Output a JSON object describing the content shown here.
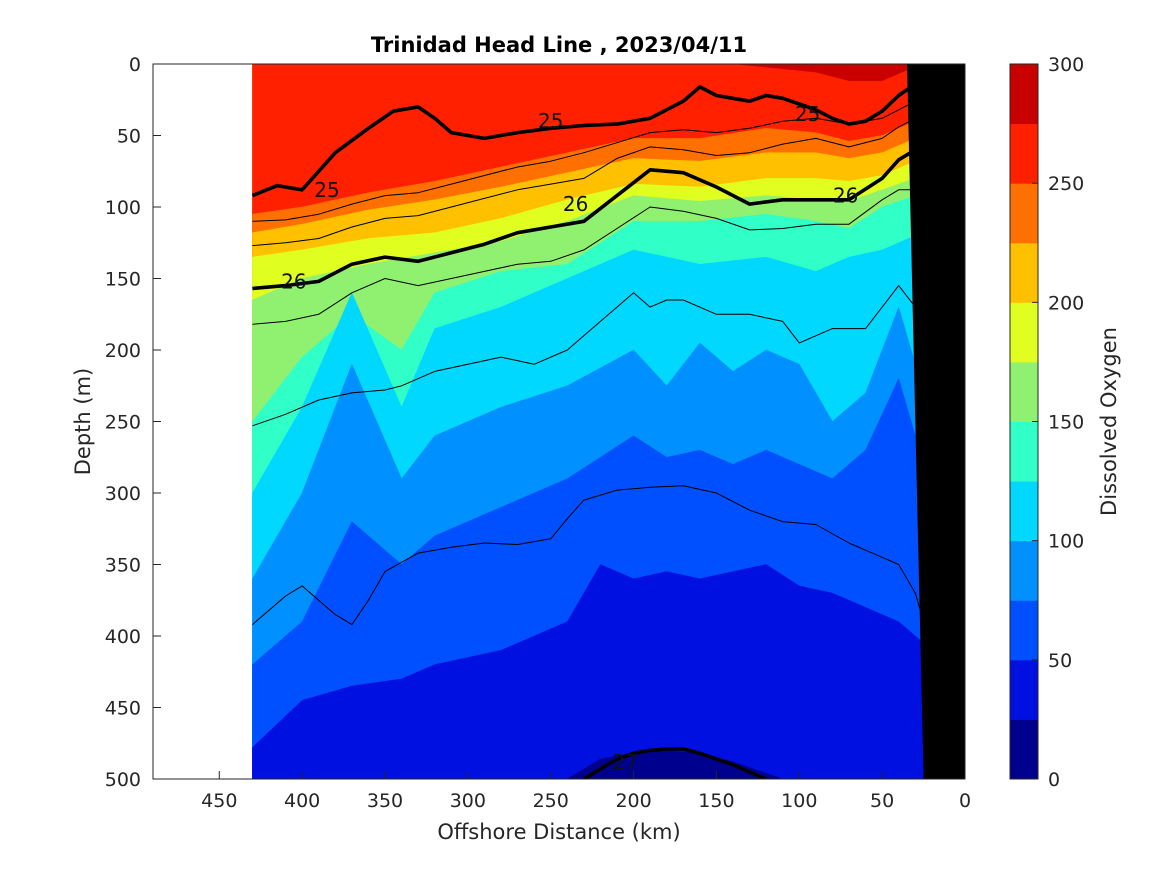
{
  "chart_data": {
    "type": "contourf",
    "title": "Trinidad Head Line , 2023/04/11",
    "xlabel": "Offshore Distance (km)",
    "ylabel": "Depth (m)",
    "colorbar_label": "Dissolved Oxygen",
    "xlim": [
      490,
      0
    ],
    "ylim": [
      0,
      500
    ],
    "x_reversed": true,
    "y_reversed": true,
    "x_ticks": [
      450,
      400,
      350,
      300,
      250,
      200,
      150,
      100,
      50,
      0
    ],
    "y_ticks": [
      0,
      50,
      100,
      150,
      200,
      250,
      300,
      350,
      400,
      450,
      500
    ],
    "data_x_range": [
      430,
      0
    ],
    "colorbar": {
      "range": [
        0,
        300
      ],
      "ticks": [
        0,
        50,
        100,
        150,
        200,
        250,
        300
      ],
      "levels": [
        0,
        25,
        50,
        75,
        100,
        125,
        150,
        175,
        200,
        225,
        250,
        275,
        300
      ],
      "colors": [
        "#00008f",
        "#0010e0",
        "#0050ff",
        "#0090ff",
        "#00d8ff",
        "#30ffc8",
        "#90f070",
        "#e0ff20",
        "#ffc000",
        "#ff7000",
        "#ff2000",
        "#c80000"
      ]
    },
    "oxygen_boundaries": [
      {
        "level": 275,
        "x": [
          430,
          300,
          200,
          150,
          90,
          70,
          50,
          30,
          10
        ],
        "depth": [
          -1,
          -1,
          -1,
          -1,
          6,
          12,
          12,
          2,
          0
        ]
      },
      {
        "level": 250,
        "x": [
          430,
          400,
          360,
          320,
          280,
          240,
          200,
          160,
          120,
          90,
          70,
          50,
          30,
          10
        ],
        "depth": [
          105,
          100,
          90,
          82,
          72,
          62,
          52,
          52,
          45,
          48,
          54,
          50,
          40,
          48
        ]
      },
      {
        "level": 225,
        "x": [
          430,
          400,
          360,
          320,
          280,
          240,
          200,
          160,
          120,
          90,
          70,
          50,
          30,
          10
        ],
        "depth": [
          118,
          112,
          102,
          95,
          86,
          76,
          66,
          68,
          62,
          62,
          66,
          62,
          52,
          58
        ]
      },
      {
        "level": 200,
        "x": [
          430,
          400,
          360,
          320,
          280,
          240,
          200,
          160,
          120,
          90,
          70,
          50,
          30,
          10
        ],
        "depth": [
          135,
          130,
          122,
          118,
          108,
          95,
          84,
          86,
          80,
          80,
          82,
          78,
          68,
          72
        ]
      },
      {
        "level": 175,
        "x": [
          430,
          400,
          360,
          320,
          280,
          240,
          200,
          160,
          120,
          90,
          70,
          50,
          30,
          10
        ],
        "depth": [
          165,
          150,
          140,
          132,
          124,
          110,
          92,
          96,
          92,
          95,
          96,
          88,
          80,
          90
        ]
      },
      {
        "level": 150,
        "x": [
          430,
          400,
          370,
          340,
          320,
          280,
          240,
          200,
          160,
          120,
          90,
          70,
          50,
          30,
          10
        ],
        "depth": [
          250,
          205,
          175,
          200,
          160,
          145,
          140,
          110,
          110,
          105,
          110,
          115,
          100,
          92,
          110
        ]
      },
      {
        "level": 125,
        "x": [
          430,
          400,
          370,
          340,
          320,
          280,
          240,
          200,
          160,
          120,
          90,
          70,
          50,
          30,
          10
        ],
        "depth": [
          300,
          240,
          160,
          240,
          185,
          170,
          150,
          130,
          140,
          135,
          145,
          135,
          130,
          120,
          160
        ]
      },
      {
        "level": 100,
        "x": [
          430,
          400,
          370,
          340,
          320,
          280,
          240,
          200,
          180,
          160,
          140,
          120,
          100,
          80,
          60,
          40,
          20
        ],
        "depth": [
          360,
          300,
          210,
          290,
          260,
          240,
          225,
          200,
          225,
          195,
          215,
          200,
          210,
          250,
          230,
          170,
          250
        ]
      },
      {
        "level": 75,
        "x": [
          430,
          400,
          370,
          340,
          320,
          280,
          240,
          200,
          180,
          160,
          140,
          120,
          100,
          80,
          60,
          40,
          20
        ],
        "depth": [
          420,
          390,
          320,
          350,
          330,
          310,
          290,
          260,
          275,
          270,
          280,
          270,
          280,
          290,
          270,
          220,
          300
        ]
      },
      {
        "level": 50,
        "x": [
          430,
          400,
          370,
          340,
          320,
          280,
          240,
          220,
          200,
          180,
          160,
          140,
          120,
          100,
          80,
          60,
          40,
          20
        ],
        "depth": [
          478,
          445,
          435,
          430,
          420,
          410,
          390,
          350,
          360,
          355,
          360,
          355,
          350,
          365,
          370,
          380,
          390,
          410
        ]
      },
      {
        "level": 25,
        "x": [
          240,
          220,
          200,
          180,
          160,
          140,
          120,
          110
        ],
        "depth": [
          500,
          486,
          482,
          480,
          482,
          488,
          496,
          500
        ]
      }
    ],
    "density_contours": [
      {
        "label": "25",
        "bold": true,
        "x": [
          430,
          415,
          400,
          390,
          380,
          360,
          345,
          330,
          320,
          310,
          290,
          270,
          250,
          230,
          210,
          190,
          170,
          160,
          150,
          130,
          120,
          110,
          100,
          90,
          80,
          70,
          60,
          50,
          40,
          30,
          20,
          10
        ],
        "depth": [
          92,
          85,
          88,
          75,
          62,
          45,
          33,
          30,
          38,
          48,
          52,
          48,
          45,
          43,
          42,
          38,
          26,
          16,
          22,
          26,
          22,
          24,
          28,
          32,
          38,
          42,
          40,
          33,
          22,
          14,
          16,
          20
        ]
      },
      {
        "label": "26",
        "bold": true,
        "x": [
          430,
          410,
          390,
          370,
          350,
          330,
          310,
          290,
          270,
          250,
          230,
          210,
          190,
          170,
          150,
          130,
          110,
          90,
          70,
          50,
          40,
          30,
          20,
          10
        ],
        "depth": [
          157,
          155,
          152,
          140,
          135,
          138,
          132,
          126,
          118,
          114,
          110,
          92,
          74,
          76,
          86,
          98,
          95,
          95,
          95,
          80,
          67,
          60,
          60,
          80
        ]
      },
      {
        "label": "",
        "bold": false,
        "x": [
          430,
          410,
          390,
          370,
          350,
          330,
          310,
          290,
          270,
          250,
          230,
          210,
          190,
          170,
          150,
          130,
          110,
          90,
          70,
          50,
          40,
          30,
          20,
          10
        ],
        "depth": [
          110,
          109,
          105,
          98,
          92,
          90,
          84,
          78,
          72,
          68,
          62,
          55,
          48,
          46,
          48,
          45,
          40,
          38,
          42,
          38,
          32,
          26,
          20,
          8
        ]
      },
      {
        "label": "",
        "bold": false,
        "x": [
          430,
          410,
          390,
          370,
          350,
          330,
          310,
          290,
          270,
          250,
          230,
          210,
          190,
          170,
          150,
          130,
          110,
          90,
          70,
          50,
          40,
          30,
          20,
          10
        ],
        "depth": [
          127,
          125,
          122,
          114,
          108,
          106,
          100,
          94,
          88,
          84,
          80,
          66,
          58,
          60,
          64,
          62,
          56,
          52,
          58,
          52,
          44,
          38,
          36,
          45
        ]
      },
      {
        "label": "",
        "bold": false,
        "x": [
          430,
          410,
          390,
          370,
          350,
          330,
          310,
          290,
          270,
          250,
          230,
          210,
          190,
          170,
          150,
          130,
          110,
          90,
          70,
          50,
          40,
          30,
          20,
          10
        ],
        "depth": [
          182,
          180,
          175,
          160,
          150,
          155,
          150,
          145,
          140,
          138,
          130,
          115,
          100,
          103,
          108,
          116,
          115,
          112,
          112,
          95,
          88,
          88,
          98,
          130
        ]
      },
      {
        "label": "",
        "bold": false,
        "x": [
          430,
          410,
          390,
          370,
          350,
          340,
          320,
          300,
          280,
          260,
          240,
          220,
          210,
          200,
          190,
          180,
          170,
          150,
          130,
          110,
          100,
          80,
          60,
          40,
          30,
          20,
          10
        ],
        "depth": [
          253,
          245,
          235,
          230,
          228,
          225,
          215,
          210,
          205,
          210,
          200,
          180,
          170,
          160,
          170,
          165,
          165,
          175,
          175,
          180,
          195,
          185,
          185,
          155,
          170,
          195,
          250
        ]
      },
      {
        "label": "",
        "bold": false,
        "x": [
          430,
          410,
          400,
          390,
          380,
          370,
          360,
          350,
          330,
          310,
          290,
          270,
          250,
          240,
          230,
          210,
          190,
          170,
          150,
          130,
          110,
          90,
          70,
          50,
          40,
          30,
          20,
          10
        ],
        "depth": [
          392,
          372,
          365,
          375,
          385,
          392,
          375,
          355,
          342,
          338,
          335,
          336,
          332,
          318,
          305,
          298,
          296,
          295,
          300,
          312,
          320,
          322,
          335,
          345,
          350,
          370,
          410,
          500
        ]
      },
      {
        "label": "27",
        "bold": true,
        "x": [
          230,
          220,
          210,
          200,
          190,
          180,
          170,
          160,
          150,
          140,
          130,
          120
        ],
        "depth": [
          500,
          493,
          486,
          482,
          480,
          479,
          479,
          482,
          486,
          490,
          495,
          500
        ]
      }
    ],
    "density_label_positions": [
      {
        "label": "25",
        "x": 385,
        "depth": 88
      },
      {
        "label": "25",
        "x": 250,
        "depth": 40
      },
      {
        "label": "25",
        "x": 95,
        "depth": 35
      },
      {
        "label": "26",
        "x": 405,
        "depth": 152
      },
      {
        "label": "26",
        "x": 235,
        "depth": 98
      },
      {
        "label": "26",
        "x": 72,
        "depth": 92
      },
      {
        "label": "27",
        "x": 205,
        "depth": 488
      }
    ],
    "bathymetry": {
      "x": [
        0,
        0,
        25,
        35
      ],
      "depth": [
        0,
        500,
        500,
        0
      ]
    }
  }
}
